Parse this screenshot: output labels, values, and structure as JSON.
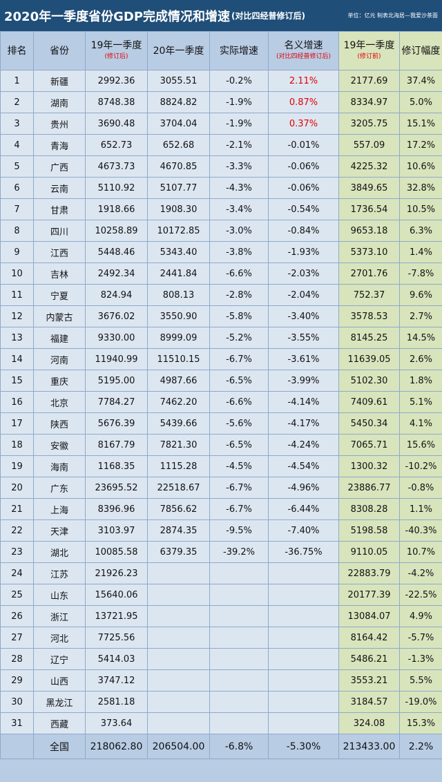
{
  "header": {
    "title": "2020年一季度省份GDP完成情况和增速",
    "subtitle": "(对比四经普修订后)",
    "note": "单位：亿元 制表北海居—我爱沙茶面"
  },
  "table": {
    "columns": [
      {
        "text": "排名"
      },
      {
        "text": "省份"
      },
      {
        "text": "19年一季度",
        "sub": "(修订后)"
      },
      {
        "text": "20年一季度"
      },
      {
        "text": "实际增速"
      },
      {
        "text": "名义增速",
        "sub": "(对比四经普修订后)"
      },
      {
        "text": "19年一季度",
        "sub": "(修订前)"
      },
      {
        "text": "修订幅度"
      }
    ],
    "rows": [
      [
        "1",
        "新疆",
        "2992.36",
        "3055.51",
        "-0.2%",
        "2.11%",
        "2177.69",
        "37.4%"
      ],
      [
        "2",
        "湖南",
        "8748.38",
        "8824.82",
        "-1.9%",
        "0.87%",
        "8334.97",
        "5.0%"
      ],
      [
        "3",
        "贵州",
        "3690.48",
        "3704.04",
        "-1.9%",
        "0.37%",
        "3205.75",
        "15.1%"
      ],
      [
        "4",
        "青海",
        "652.73",
        "652.68",
        "-2.1%",
        "-0.01%",
        "557.09",
        "17.2%"
      ],
      [
        "5",
        "广西",
        "4673.73",
        "4670.85",
        "-3.3%",
        "-0.06%",
        "4225.32",
        "10.6%"
      ],
      [
        "6",
        "云南",
        "5110.92",
        "5107.77",
        "-4.3%",
        "-0.06%",
        "3849.65",
        "32.8%"
      ],
      [
        "7",
        "甘肃",
        "1918.66",
        "1908.30",
        "-3.4%",
        "-0.54%",
        "1736.54",
        "10.5%"
      ],
      [
        "8",
        "四川",
        "10258.89",
        "10172.85",
        "-3.0%",
        "-0.84%",
        "9653.18",
        "6.3%"
      ],
      [
        "9",
        "江西",
        "5448.46",
        "5343.40",
        "-3.8%",
        "-1.93%",
        "5373.10",
        "1.4%"
      ],
      [
        "10",
        "吉林",
        "2492.34",
        "2441.84",
        "-6.6%",
        "-2.03%",
        "2701.76",
        "-7.8%"
      ],
      [
        "11",
        "宁夏",
        "824.94",
        "808.13",
        "-2.8%",
        "-2.04%",
        "752.37",
        "9.6%"
      ],
      [
        "12",
        "内蒙古",
        "3676.02",
        "3550.90",
        "-5.8%",
        "-3.40%",
        "3578.53",
        "2.7%"
      ],
      [
        "13",
        "福建",
        "9330.00",
        "8999.09",
        "-5.2%",
        "-3.55%",
        "8145.25",
        "14.5%"
      ],
      [
        "14",
        "河南",
        "11940.99",
        "11510.15",
        "-6.7%",
        "-3.61%",
        "11639.05",
        "2.6%"
      ],
      [
        "15",
        "重庆",
        "5195.00",
        "4987.66",
        "-6.5%",
        "-3.99%",
        "5102.30",
        "1.8%"
      ],
      [
        "16",
        "北京",
        "7784.27",
        "7462.20",
        "-6.6%",
        "-4.14%",
        "7409.61",
        "5.1%"
      ],
      [
        "17",
        "陕西",
        "5676.39",
        "5439.66",
        "-5.6%",
        "-4.17%",
        "5450.34",
        "4.1%"
      ],
      [
        "18",
        "安徽",
        "8167.79",
        "7821.30",
        "-6.5%",
        "-4.24%",
        "7065.71",
        "15.6%"
      ],
      [
        "19",
        "海南",
        "1168.35",
        "1115.28",
        "-4.5%",
        "-4.54%",
        "1300.32",
        "-10.2%"
      ],
      [
        "20",
        "广东",
        "23695.52",
        "22518.67",
        "-6.7%",
        "-4.96%",
        "23886.77",
        "-0.8%"
      ],
      [
        "21",
        "上海",
        "8396.96",
        "7856.62",
        "-6.7%",
        "-6.44%",
        "8308.28",
        "1.1%"
      ],
      [
        "22",
        "天津",
        "3103.97",
        "2874.35",
        "-9.5%",
        "-7.40%",
        "5198.58",
        "-40.3%"
      ],
      [
        "23",
        "湖北",
        "10085.58",
        "6379.35",
        "-39.2%",
        "-36.75%",
        "9110.05",
        "10.7%"
      ],
      [
        "24",
        "江苏",
        "21926.23",
        null,
        null,
        null,
        "22883.79",
        "-4.2%"
      ],
      [
        "25",
        "山东",
        "15640.06",
        null,
        null,
        null,
        "20177.39",
        "-22.5%"
      ],
      [
        "26",
        "浙江",
        "13721.95",
        null,
        null,
        null,
        "13084.07",
        "4.9%"
      ],
      [
        "27",
        "河北",
        "7725.56",
        null,
        null,
        null,
        "8164.42",
        "-5.7%"
      ],
      [
        "28",
        "辽宁",
        "5414.03",
        null,
        null,
        null,
        "5486.21",
        "-1.3%"
      ],
      [
        "29",
        "山西",
        "3747.12",
        null,
        null,
        null,
        "3553.21",
        "5.5%"
      ],
      [
        "30",
        "黑龙江",
        "2581.18",
        null,
        null,
        null,
        "3184.57",
        "-19.0%"
      ],
      [
        "31",
        "西藏",
        "373.64",
        null,
        null,
        null,
        "324.08",
        "15.3%"
      ]
    ],
    "total": [
      null,
      "全国",
      "218062.80",
      "206504.00",
      "-6.8%",
      "-5.30%",
      "213433.00",
      "2.2%"
    ]
  }
}
